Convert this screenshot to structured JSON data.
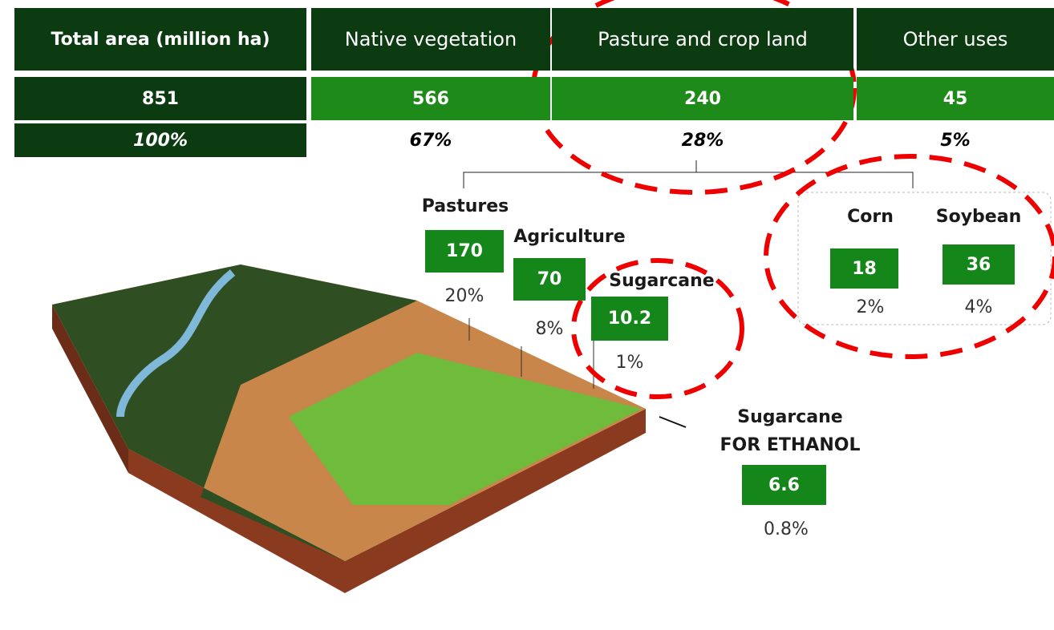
{
  "table": {
    "header": [
      "Total area (million ha)",
      "Native vegetation",
      "Pasture and crop land",
      "Other uses"
    ],
    "rows": [
      [
        "851",
        "566",
        "240",
        "45"
      ],
      [
        "100%",
        "67%",
        "28%",
        "5%"
      ]
    ]
  },
  "breakdown": {
    "pastures": {
      "label": "Pastures",
      "value": "170",
      "share": "20%"
    },
    "agriculture": {
      "label": "Agriculture",
      "value": "70",
      "share": "8%"
    },
    "sugarcane": {
      "label": "Sugarcane",
      "value": "10.2",
      "share": "1%"
    },
    "corn": {
      "label": "Corn",
      "value": "18",
      "share": "2%"
    },
    "soybean": {
      "label": "Soybean",
      "value": "36",
      "share": "4%"
    },
    "ethanol": {
      "label_lines": [
        "Sugarcane",
        "FOR ETHANOL"
      ],
      "value": "6.6",
      "share": "0.8%"
    }
  }
}
